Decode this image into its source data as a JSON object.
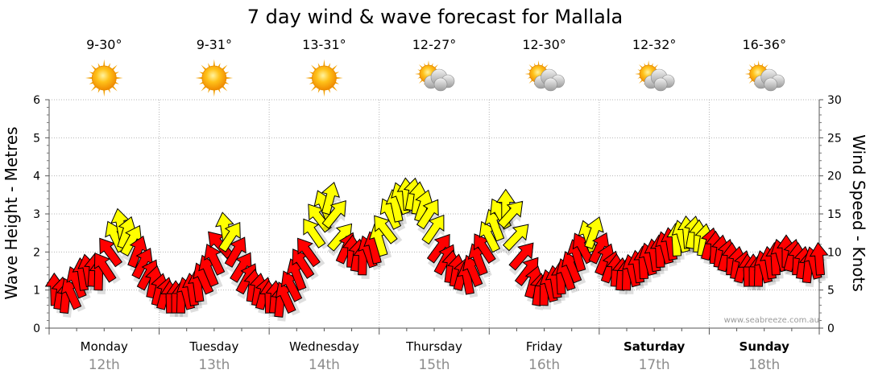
{
  "chart_data": {
    "type": "line",
    "title": "7 day wind & wave forecast for Mallala",
    "ylabel": "Wave Height - Metres",
    "y2label": "Wind Speed - Knots",
    "ylim": [
      0,
      6
    ],
    "y2lim": [
      0,
      30
    ],
    "yticks": [
      "0",
      "1",
      "2",
      "3",
      "4",
      "5",
      "6"
    ],
    "y2ticks": [
      "0",
      "5",
      "10",
      "15",
      "20",
      "25",
      "30"
    ],
    "watermark": "www.seabreeze.com.au",
    "days": [
      {
        "name": "Monday",
        "date": "12th",
        "temp": "9-30°",
        "weather": "sunny",
        "bold": false
      },
      {
        "name": "Tuesday",
        "date": "13th",
        "temp": "9-31°",
        "weather": "sunny",
        "bold": false
      },
      {
        "name": "Wednesday",
        "date": "14th",
        "temp": "13-31°",
        "weather": "sunny",
        "bold": false
      },
      {
        "name": "Thursday",
        "date": "15th",
        "temp": "12-27°",
        "weather": "partly-cloudy",
        "bold": false
      },
      {
        "name": "Friday",
        "date": "16th",
        "temp": "12-30°",
        "weather": "partly-cloudy",
        "bold": false
      },
      {
        "name": "Saturday",
        "date": "17th",
        "temp": "12-32°",
        "weather": "partly-cloudy",
        "bold": true
      },
      {
        "name": "Sunday",
        "date": "18th",
        "temp": "16-36°",
        "weather": "partly-cloudy",
        "bold": true
      }
    ],
    "series": [
      {
        "name": "Wind Speed (knots)",
        "x_unit": "day index (0 = Monday 00:00)",
        "threshold_yellow": 11.5,
        "colors": {
          "below": "#ff0000",
          "above": "#ffff00"
        },
        "x": [
          0.05,
          0.1,
          0.15,
          0.2,
          0.25,
          0.3,
          0.35,
          0.4,
          0.45,
          0.5,
          0.55,
          0.6,
          0.65,
          0.7,
          0.75,
          0.8,
          0.85,
          0.9,
          0.95,
          1.0,
          1.05,
          1.1,
          1.15,
          1.2,
          1.25,
          1.3,
          1.35,
          1.4,
          1.45,
          1.5,
          1.55,
          1.6,
          1.65,
          1.7,
          1.75,
          1.8,
          1.85,
          1.9,
          1.95,
          2.0,
          2.05,
          2.1,
          2.15,
          2.2,
          2.25,
          2.3,
          2.35,
          2.4,
          2.45,
          2.5,
          2.55,
          2.6,
          2.65,
          2.7,
          2.75,
          2.8,
          2.85,
          2.9,
          2.95,
          3.0,
          3.05,
          3.1,
          3.15,
          3.2,
          3.25,
          3.3,
          3.35,
          3.4,
          3.45,
          3.5,
          3.55,
          3.6,
          3.65,
          3.7,
          3.75,
          3.8,
          3.85,
          3.9,
          3.95,
          4.0,
          4.05,
          4.1,
          4.15,
          4.2,
          4.25,
          4.3,
          4.35,
          4.4,
          4.45,
          4.5,
          4.55,
          4.6,
          4.65,
          4.7,
          4.75,
          4.8,
          4.85,
          4.9,
          4.95,
          5.0,
          5.05,
          5.1,
          5.15,
          5.2,
          5.25,
          5.3,
          5.35,
          5.4,
          5.45,
          5.5,
          5.55,
          5.6,
          5.65,
          5.7,
          5.75,
          5.8,
          5.85,
          5.9,
          5.95,
          6.0,
          6.05,
          6.1,
          6.15,
          6.2,
          6.25,
          6.3,
          6.35,
          6.4,
          6.45,
          6.5,
          6.55,
          6.6,
          6.65,
          6.7,
          6.75,
          6.8,
          6.85,
          6.9,
          6.95,
          7.0
        ],
        "values": [
          5,
          4.5,
          4,
          4.5,
          6,
          7,
          7.5,
          7.5,
          7,
          8,
          10,
          12,
          13.5,
          12.5,
          11.5,
          10,
          8.5,
          7,
          6,
          5,
          4.5,
          4,
          4,
          4,
          4.5,
          5,
          5.5,
          6.5,
          7.5,
          9,
          11,
          13,
          12,
          10,
          8,
          6.5,
          5.5,
          5,
          4.5,
          4,
          4,
          3.5,
          4,
          5.5,
          7,
          8.5,
          10,
          12.5,
          14.5,
          16,
          17,
          15,
          12,
          10.5,
          10,
          9.5,
          9,
          10,
          10.5,
          11.5,
          13,
          15,
          16,
          17,
          17.5,
          17.5,
          17,
          16,
          15,
          13,
          10.5,
          9,
          8,
          7.5,
          7,
          6.5,
          7.5,
          9,
          10.5,
          12,
          13.5,
          15,
          16,
          15,
          12,
          9.5,
          7.5,
          6,
          5,
          5,
          5.5,
          6,
          6.5,
          7,
          8,
          9.5,
          10.5,
          12,
          12.5,
          10.5,
          9,
          8,
          7.5,
          7,
          7,
          7.5,
          8,
          8.5,
          9,
          9.5,
          10,
          10.5,
          11,
          11.5,
          12,
          12.5,
          12.5,
          12,
          11.5,
          11,
          10.5,
          10,
          9.5,
          9,
          8.5,
          8,
          7.5,
          7.5,
          7.5,
          8,
          8.5,
          9,
          9.5,
          10,
          9.5,
          9,
          8.5,
          8,
          8.5,
          9
        ]
      }
    ]
  }
}
